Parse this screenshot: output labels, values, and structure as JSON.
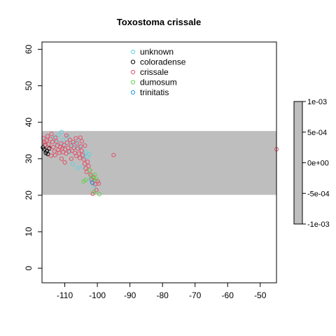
{
  "chart_data": {
    "type": "scatter",
    "title": "Toxostoma crissale",
    "xlabel": "",
    "ylabel": "",
    "xlim": [
      -117,
      -45
    ],
    "ylim": [
      -4,
      62
    ],
    "x_ticks": [
      -110,
      -100,
      -90,
      -80,
      -70,
      -60,
      -50
    ],
    "x_tick_labels": [
      "-110",
      "-100",
      "-90",
      "-80",
      "-70",
      "-60",
      "-50"
    ],
    "y_ticks": [
      0,
      10,
      20,
      30,
      40,
      50,
      60
    ],
    "y_tick_labels": [
      "0",
      "10",
      "20",
      "30",
      "40",
      "50",
      "60"
    ],
    "grid": false,
    "band": {
      "y_min": 20.1,
      "y_max": 37.6,
      "color": "#bebebe"
    },
    "legend_position": "top",
    "series": [
      {
        "name": "unknown",
        "color": "#61d0df",
        "points": [
          [
            -113.5,
            35.8
          ],
          [
            -112,
            36.5
          ],
          [
            -111,
            37.3
          ],
          [
            -110.5,
            35.2
          ],
          [
            -109,
            36
          ],
          [
            -108,
            34.2
          ],
          [
            -107,
            33.5
          ],
          [
            -106.2,
            34.8
          ],
          [
            -105.5,
            33.2
          ],
          [
            -104,
            30.5
          ],
          [
            -103.5,
            31.8
          ],
          [
            -103,
            30.6
          ],
          [
            -102.5,
            31.2
          ],
          [
            -107.5,
            28.5
          ],
          [
            -106,
            27.4
          ],
          [
            -104.5,
            27.8
          ],
          [
            -101.5,
            23.5
          ],
          [
            -101,
            22.5
          ],
          [
            -102.2,
            24.4
          ],
          [
            -110.5,
            33.6
          ],
          [
            -112.5,
            34.4
          ],
          [
            -108.5,
            31.8
          ]
        ]
      },
      {
        "name": "coloradense",
        "color": "#000000",
        "points": [
          [
            -116.7,
            33.1
          ],
          [
            -116.3,
            32.6
          ],
          [
            -115.8,
            31.6
          ],
          [
            -115.5,
            32.1
          ],
          [
            -116.0,
            33.8
          ],
          [
            -115.2,
            31.3
          ],
          [
            -114.8,
            32.8
          ]
        ]
      },
      {
        "name": "crissale",
        "color": "#df536b",
        "points": [
          [
            -116.5,
            35.6
          ],
          [
            -116.2,
            34.5
          ],
          [
            -115.9,
            33.8
          ],
          [
            -115.6,
            35
          ],
          [
            -115.3,
            36.2
          ],
          [
            -115,
            34
          ],
          [
            -114.7,
            33
          ],
          [
            -114.4,
            35.4
          ],
          [
            -114.1,
            36.8
          ],
          [
            -113.8,
            34.6
          ],
          [
            -113.5,
            33.2
          ],
          [
            -113.2,
            32
          ],
          [
            -112.9,
            35.8
          ],
          [
            -112.6,
            34.8
          ],
          [
            -112.3,
            33.6
          ],
          [
            -112,
            32.4
          ],
          [
            -111.7,
            31.6
          ],
          [
            -111.4,
            33.2
          ],
          [
            -111.1,
            34.2
          ],
          [
            -110.8,
            32.8
          ],
          [
            -110.5,
            31.8
          ],
          [
            -110.2,
            33.8
          ],
          [
            -109.9,
            32.6
          ],
          [
            -109.6,
            31.4
          ],
          [
            -109.3,
            34.4
          ],
          [
            -109,
            33
          ],
          [
            -108.7,
            32
          ],
          [
            -108.4,
            35.2
          ],
          [
            -108.1,
            33.6
          ],
          [
            -107.8,
            32.2
          ],
          [
            -107.5,
            34.6
          ],
          [
            -107.2,
            33
          ],
          [
            -106.9,
            31.6
          ],
          [
            -106.6,
            35.6
          ],
          [
            -106.3,
            34.2
          ],
          [
            -106,
            32.8
          ],
          [
            -105.7,
            31.4
          ],
          [
            -105.4,
            30.2
          ],
          [
            -105.1,
            33.4
          ],
          [
            -104.8,
            32.2
          ],
          [
            -104.5,
            31
          ],
          [
            -104.2,
            29.8
          ],
          [
            -103.9,
            28.6
          ],
          [
            -103.6,
            27.4
          ],
          [
            -103.3,
            26.4
          ],
          [
            -103,
            29.2
          ],
          [
            -102.7,
            28
          ],
          [
            -102.4,
            26.8
          ],
          [
            -102.1,
            25.6
          ],
          [
            -101.8,
            24.4
          ],
          [
            -101.5,
            23.4
          ],
          [
            -101.2,
            25
          ],
          [
            -100.9,
            24
          ],
          [
            -100.6,
            23
          ],
          [
            -100.3,
            21.4
          ],
          [
            -99.9,
            23.8
          ],
          [
            -99.6,
            23.2
          ],
          [
            -101.4,
            20.4
          ],
          [
            -95,
            31
          ],
          [
            -45,
            32.6
          ],
          [
            -110,
            29
          ],
          [
            -111,
            30
          ],
          [
            -108,
            30
          ],
          [
            -106.5,
            30.8
          ],
          [
            -104.8,
            34.8
          ],
          [
            -105.2,
            35.8
          ],
          [
            -103.8,
            33.6
          ],
          [
            -114.2,
            30.8
          ],
          [
            -113,
            31
          ],
          [
            -109.5,
            36.4
          ]
        ]
      },
      {
        "name": "dumosum",
        "color": "#61d04f",
        "points": [
          [
            -102.3,
            26.8
          ],
          [
            -101.8,
            25.2
          ],
          [
            -101.2,
            24.6
          ],
          [
            -100.8,
            25.6
          ],
          [
            -100.4,
            24.4
          ],
          [
            -104.2,
            23.8
          ],
          [
            -103.6,
            24.2
          ],
          [
            -99.4,
            20.3
          ],
          [
            -101,
            21
          ]
        ]
      },
      {
        "name": "trinitatis",
        "color": "#2297e6",
        "points": [
          [
            -101.6,
            23.5
          ]
        ]
      }
    ],
    "colorbar": {
      "ticks": [
        0.001,
        0.0005,
        0,
        -0.0005,
        -0.001
      ],
      "tick_labels": [
        "1e-03",
        "5e-04",
        "0e+00",
        "-5e-04",
        "-1e-03"
      ],
      "color": "#bebebe"
    }
  }
}
